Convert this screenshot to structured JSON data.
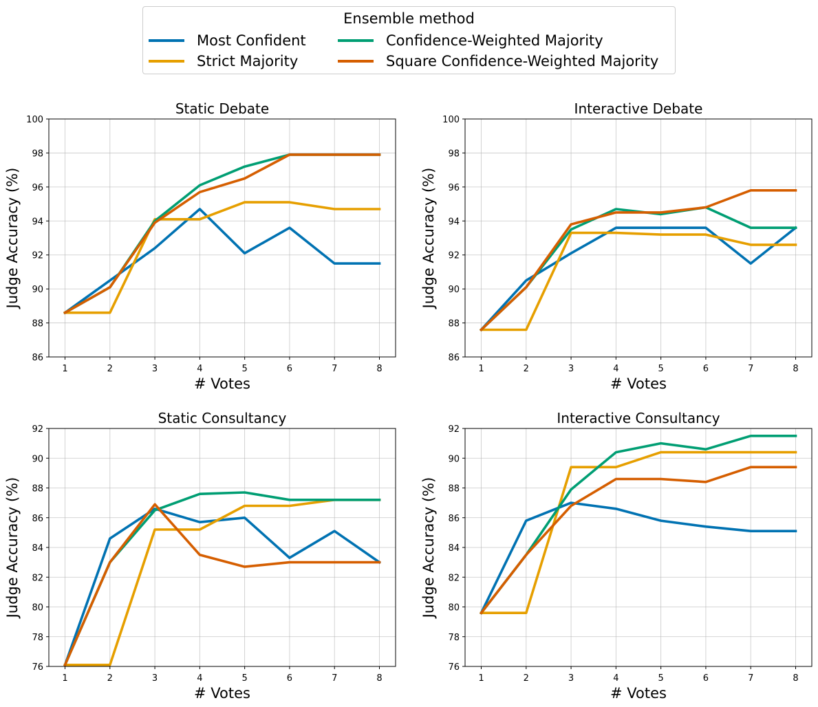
{
  "legend": {
    "title": "Ensemble method",
    "entries": [
      {
        "name": "Most Confident",
        "color": "#0072b2"
      },
      {
        "name": "Confidence-Weighted Majority",
        "color": "#009e73"
      },
      {
        "name": "Strict Majority",
        "color": "#e69f00"
      },
      {
        "name": "Square Confidence-Weighted Majority",
        "color": "#d55e00"
      }
    ]
  },
  "chart_data": [
    {
      "type": "line",
      "title": "Static Debate",
      "xlabel": "# Votes",
      "ylabel": "Judge Accuracy (%)",
      "x": [
        1,
        2,
        3,
        4,
        5,
        6,
        7,
        8
      ],
      "xlim": [
        0.64,
        8.36
      ],
      "ylim": [
        86,
        100
      ],
      "yticks": [
        86,
        88,
        90,
        92,
        94,
        96,
        98,
        100
      ],
      "grid": true,
      "series": [
        {
          "name": "Most Confident",
          "color": "#0072b2",
          "values": [
            88.6,
            90.5,
            92.4,
            94.7,
            92.1,
            93.6,
            91.5,
            91.5
          ]
        },
        {
          "name": "Strict Majority",
          "color": "#e69f00",
          "values": [
            88.6,
            88.6,
            94.1,
            94.1,
            95.1,
            95.1,
            94.7,
            94.7
          ]
        },
        {
          "name": "Confidence-Weighted Majority",
          "color": "#009e73",
          "values": [
            88.6,
            90.1,
            94.0,
            96.1,
            97.2,
            97.9,
            97.9,
            97.9
          ]
        },
        {
          "name": "Square Confidence-Weighted Majority",
          "color": "#d55e00",
          "values": [
            88.6,
            90.1,
            93.9,
            95.7,
            96.5,
            97.9,
            97.9,
            97.9
          ]
        }
      ]
    },
    {
      "type": "line",
      "title": "Interactive Debate",
      "xlabel": "# Votes",
      "ylabel": "Judge Accuracy (%)",
      "x": [
        1,
        2,
        3,
        4,
        5,
        6,
        7,
        8
      ],
      "xlim": [
        0.64,
        8.36
      ],
      "ylim": [
        86,
        100
      ],
      "yticks": [
        86,
        88,
        90,
        92,
        94,
        96,
        98,
        100
      ],
      "grid": true,
      "series": [
        {
          "name": "Most Confident",
          "color": "#0072b2",
          "values": [
            87.6,
            90.5,
            92.1,
            93.6,
            93.6,
            93.6,
            91.5,
            93.6
          ]
        },
        {
          "name": "Strict Majority",
          "color": "#e69f00",
          "values": [
            87.6,
            87.6,
            93.3,
            93.3,
            93.2,
            93.2,
            92.6,
            92.6
          ]
        },
        {
          "name": "Confidence-Weighted Majority",
          "color": "#009e73",
          "values": [
            87.6,
            90.1,
            93.5,
            94.7,
            94.4,
            94.8,
            93.6,
            93.6
          ]
        },
        {
          "name": "Square Confidence-Weighted Majority",
          "color": "#d55e00",
          "values": [
            87.6,
            90.1,
            93.8,
            94.5,
            94.5,
            94.8,
            95.8,
            95.8
          ]
        }
      ]
    },
    {
      "type": "line",
      "title": "Static Consultancy",
      "xlabel": "# Votes",
      "ylabel": "Judge Accuracy (%)",
      "x": [
        1,
        2,
        3,
        4,
        5,
        6,
        7,
        8
      ],
      "xlim": [
        0.64,
        8.36
      ],
      "ylim": [
        76,
        92
      ],
      "yticks": [
        76,
        78,
        80,
        82,
        84,
        86,
        88,
        90,
        92
      ],
      "grid": true,
      "series": [
        {
          "name": "Most Confident",
          "color": "#0072b2",
          "values": [
            76.1,
            84.6,
            86.6,
            85.7,
            86.0,
            83.3,
            85.1,
            83.0
          ]
        },
        {
          "name": "Strict Majority",
          "color": "#e69f00",
          "values": [
            76.1,
            76.1,
            85.2,
            85.2,
            86.8,
            86.8,
            87.2,
            87.2
          ]
        },
        {
          "name": "Confidence-Weighted Majority",
          "color": "#009e73",
          "values": [
            76.1,
            83.0,
            86.5,
            87.6,
            87.7,
            87.2,
            87.2,
            87.2
          ]
        },
        {
          "name": "Square Confidence-Weighted Majority",
          "color": "#d55e00",
          "values": [
            76.1,
            83.0,
            86.9,
            83.5,
            82.7,
            83.0,
            83.0,
            83.0
          ]
        }
      ]
    },
    {
      "type": "line",
      "title": "Interactive Consultancy",
      "xlabel": "# Votes",
      "ylabel": "Judge Accuracy (%)",
      "x": [
        1,
        2,
        3,
        4,
        5,
        6,
        7,
        8
      ],
      "xlim": [
        0.64,
        8.36
      ],
      "ylim": [
        76,
        92
      ],
      "yticks": [
        76,
        78,
        80,
        82,
        84,
        86,
        88,
        90,
        92
      ],
      "grid": true,
      "series": [
        {
          "name": "Most Confident",
          "color": "#0072b2",
          "values": [
            79.6,
            85.8,
            87.0,
            86.6,
            85.8,
            85.4,
            85.1,
            85.1
          ]
        },
        {
          "name": "Strict Majority",
          "color": "#e69f00",
          "values": [
            79.6,
            79.6,
            89.4,
            89.4,
            90.4,
            90.4,
            90.4,
            90.4
          ]
        },
        {
          "name": "Confidence-Weighted Majority",
          "color": "#009e73",
          "values": [
            79.6,
            83.5,
            87.9,
            90.4,
            91.0,
            90.6,
            91.5,
            91.5
          ]
        },
        {
          "name": "Square Confidence-Weighted Majority",
          "color": "#d55e00",
          "values": [
            79.6,
            83.5,
            86.8,
            88.6,
            88.6,
            88.4,
            89.4,
            89.4
          ]
        }
      ]
    }
  ]
}
